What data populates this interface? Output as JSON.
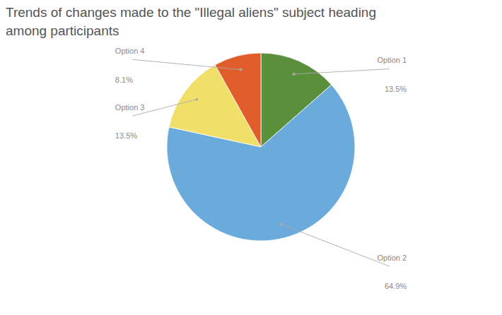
{
  "chart_data": {
    "type": "pie",
    "title": "Trends of changes made to the \"Illegal aliens\" subject heading\namong participants",
    "categories": [
      "Option 1",
      "Option 2",
      "Option 3",
      "Option 4"
    ],
    "values": [
      13.5,
      64.9,
      13.5,
      8.1
    ],
    "value_labels": [
      "13.5%",
      "64.9%",
      "13.5%",
      "8.1%"
    ],
    "colors": [
      "#5a8f3c",
      "#6aabdb",
      "#f0e06a",
      "#e05c2a"
    ],
    "data_labels": true
  }
}
